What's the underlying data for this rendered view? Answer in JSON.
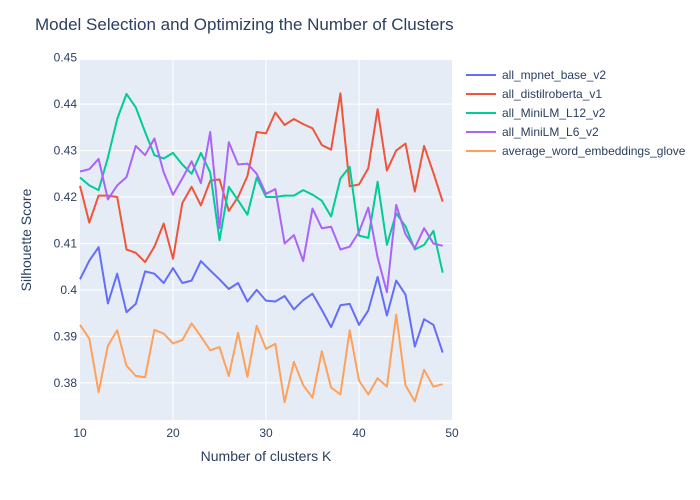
{
  "chart_data": {
    "type": "line",
    "title": "Model Selection and Optimizing the Number of Clusters",
    "xlabel": "Number of clusters K",
    "ylabel": "Silhouette Score",
    "xlim": [
      10,
      50
    ],
    "ylim": [
      0.372,
      0.4495
    ],
    "x_ticks": [
      10,
      20,
      30,
      40,
      50
    ],
    "y_ticks": [
      0.38,
      0.39,
      0.4,
      0.41,
      0.42,
      0.43,
      0.44,
      0.45
    ],
    "y_tick_labels": [
      "0.38",
      "0.39",
      "0.4",
      "0.41",
      "0.42",
      "0.43",
      "0.44",
      "0.45"
    ],
    "grid": true,
    "legend_position": "top-right-outside",
    "x": [
      10,
      11,
      12,
      13,
      14,
      15,
      16,
      17,
      18,
      19,
      20,
      21,
      22,
      23,
      24,
      25,
      26,
      27,
      28,
      29,
      30,
      31,
      32,
      33,
      34,
      35,
      36,
      37,
      38,
      39,
      40,
      41,
      42,
      43,
      44,
      45,
      46,
      47,
      48,
      49
    ],
    "series": [
      {
        "name": "all_mpnet_base_v2",
        "color": "#636efa",
        "values": [
          0.4023,
          0.4063,
          0.4092,
          0.3971,
          0.4035,
          0.3952,
          0.397,
          0.404,
          0.4035,
          0.4015,
          0.4047,
          0.4015,
          0.402,
          0.4062,
          0.4042,
          0.4023,
          0.4002,
          0.4015,
          0.3975,
          0.4,
          0.3977,
          0.3975,
          0.3987,
          0.3958,
          0.3978,
          0.3992,
          0.3957,
          0.392,
          0.3967,
          0.397,
          0.3925,
          0.3956,
          0.4028,
          0.3945,
          0.402,
          0.399,
          0.3878,
          0.3937,
          0.3925,
          0.3865
        ]
      },
      {
        "name": "all_distilroberta_v1",
        "color": "#ef553b",
        "values": [
          0.4224,
          0.4145,
          0.4203,
          0.4203,
          0.42,
          0.4087,
          0.408,
          0.406,
          0.4093,
          0.4143,
          0.4067,
          0.4187,
          0.4222,
          0.4182,
          0.4235,
          0.4238,
          0.417,
          0.42,
          0.4245,
          0.434,
          0.4337,
          0.4382,
          0.4355,
          0.4368,
          0.4357,
          0.4348,
          0.4312,
          0.4302,
          0.4423,
          0.4223,
          0.4227,
          0.4262,
          0.4389,
          0.4257,
          0.43,
          0.4315,
          0.4212,
          0.431,
          0.4252,
          0.419
        ]
      },
      {
        "name": "all_MiniLM_L12_v2",
        "color": "#00cc96",
        "values": [
          0.4242,
          0.4225,
          0.4215,
          0.4285,
          0.4368,
          0.4422,
          0.4393,
          0.434,
          0.429,
          0.4283,
          0.4295,
          0.427,
          0.425,
          0.4295,
          0.4253,
          0.4107,
          0.4222,
          0.4193,
          0.4162,
          0.4242,
          0.42,
          0.42,
          0.4203,
          0.4203,
          0.4215,
          0.4205,
          0.4192,
          0.4158,
          0.424,
          0.4265,
          0.4117,
          0.4112,
          0.4233,
          0.4097,
          0.4165,
          0.4137,
          0.4087,
          0.4097,
          0.4127,
          0.4037
        ]
      },
      {
        "name": "all_MiniLM_L6_v2",
        "color": "#ab63fa",
        "values": [
          0.4255,
          0.426,
          0.4282,
          0.4195,
          0.4225,
          0.4243,
          0.431,
          0.429,
          0.4326,
          0.4253,
          0.4205,
          0.424,
          0.4277,
          0.423,
          0.434,
          0.4133,
          0.4318,
          0.427,
          0.4272,
          0.425,
          0.4207,
          0.4217,
          0.41,
          0.4118,
          0.4062,
          0.4175,
          0.4133,
          0.4136,
          0.4087,
          0.4093,
          0.4125,
          0.4177,
          0.407,
          0.3995,
          0.4183,
          0.412,
          0.409,
          0.4133,
          0.41,
          0.4095
        ]
      },
      {
        "name": "average_word_embeddings_glove",
        "color": "#ffa15a",
        "values": [
          0.3925,
          0.3895,
          0.378,
          0.388,
          0.3913,
          0.3837,
          0.3815,
          0.3812,
          0.3914,
          0.3906,
          0.3885,
          0.3892,
          0.3928,
          0.39,
          0.387,
          0.3877,
          0.3815,
          0.3908,
          0.3813,
          0.3923,
          0.3873,
          0.3884,
          0.3758,
          0.3845,
          0.3795,
          0.3768,
          0.3868,
          0.379,
          0.3775,
          0.3913,
          0.3805,
          0.3775,
          0.381,
          0.3792,
          0.3947,
          0.3795,
          0.376,
          0.3828,
          0.3792,
          0.3797
        ]
      }
    ]
  }
}
